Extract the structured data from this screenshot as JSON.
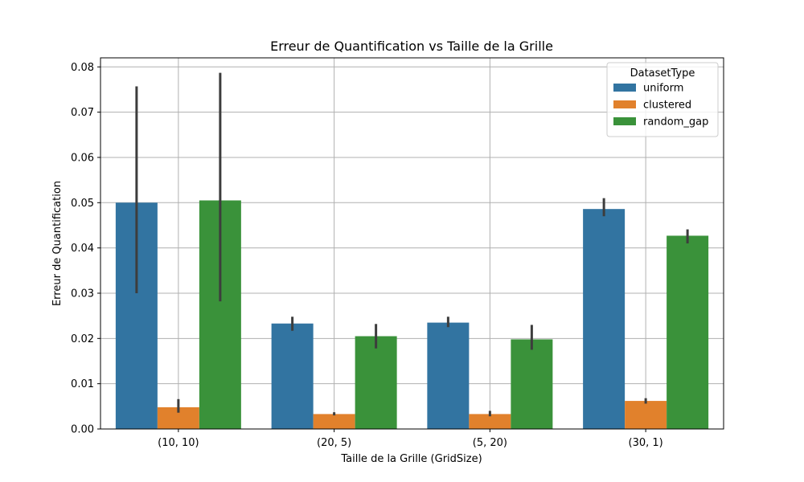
{
  "chart_data": {
    "type": "bar",
    "title": "Erreur de Quantification vs Taille de la Grille",
    "xlabel": "Taille de la Grille (GridSize)",
    "ylabel": "Erreur de Quantification",
    "categories": [
      "(10, 10)",
      "(20, 5)",
      "(5, 20)",
      "(30, 1)"
    ],
    "ylim": [
      0,
      0.082
    ],
    "yticks": [
      0.0,
      0.01,
      0.02,
      0.03,
      0.04,
      0.05,
      0.06,
      0.07,
      0.08
    ],
    "ytick_labels": [
      "0.00",
      "0.01",
      "0.02",
      "0.03",
      "0.04",
      "0.05",
      "0.06",
      "0.07",
      "0.08"
    ],
    "grid": true,
    "legend": {
      "title": "DatasetType",
      "placement": "top-right"
    },
    "series": [
      {
        "name": "uniform",
        "color": "#3274a1",
        "values": [
          0.05,
          0.0233,
          0.0235,
          0.0486
        ],
        "err_low": [
          0.03,
          0.0217,
          0.0225,
          0.047
        ],
        "err_high": [
          0.0757,
          0.0248,
          0.0248,
          0.051
        ]
      },
      {
        "name": "clustered",
        "color": "#e1812c",
        "values": [
          0.0048,
          0.0033,
          0.0033,
          0.0062
        ],
        "err_low": [
          0.0036,
          0.003,
          0.0028,
          0.0056
        ],
        "err_high": [
          0.0066,
          0.0037,
          0.004,
          0.0068
        ]
      },
      {
        "name": "random_gap",
        "color": "#3a923a",
        "values": [
          0.0505,
          0.0205,
          0.0198,
          0.0427
        ],
        "err_low": [
          0.0282,
          0.0178,
          0.0175,
          0.041
        ],
        "err_high": [
          0.0787,
          0.0232,
          0.023,
          0.0441
        ]
      }
    ]
  }
}
